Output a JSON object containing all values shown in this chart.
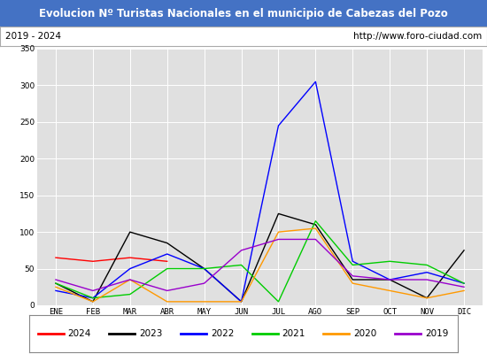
{
  "title": "Evolucion Nº Turistas Nacionales en el municipio de Cabezas del Pozo",
  "subtitle_left": "2019 - 2024",
  "subtitle_right": "http://www.foro-ciudad.com",
  "title_bg_color": "#4472c4",
  "title_text_color": "#ffffff",
  "subtitle_bg_color": "#ffffff",
  "subtitle_text_color": "#000000",
  "plot_bg_color": "#e0e0e0",
  "fig_bg_color": "#ffffff",
  "months": [
    "ENE",
    "FEB",
    "MAR",
    "ABR",
    "MAY",
    "JUN",
    "JUL",
    "AGO",
    "SEP",
    "OCT",
    "NOV",
    "DIC"
  ],
  "ylim": [
    0,
    350
  ],
  "yticks": [
    0,
    50,
    100,
    150,
    200,
    250,
    300,
    350
  ],
  "series": {
    "2024": {
      "color": "#ff0000",
      "data": [
        65,
        60,
        65,
        60,
        null,
        null,
        null,
        null,
        null,
        null,
        null,
        null
      ]
    },
    "2023": {
      "color": "#000000",
      "data": [
        30,
        5,
        100,
        85,
        50,
        5,
        125,
        110,
        35,
        35,
        10,
        75
      ]
    },
    "2022": {
      "color": "#0000ff",
      "data": [
        20,
        10,
        50,
        70,
        50,
        5,
        245,
        305,
        60,
        35,
        45,
        30
      ]
    },
    "2021": {
      "color": "#00cc00",
      "data": [
        30,
        10,
        15,
        50,
        50,
        55,
        5,
        115,
        55,
        60,
        55,
        30
      ]
    },
    "2020": {
      "color": "#ff9900",
      "data": [
        25,
        5,
        35,
        5,
        5,
        5,
        100,
        105,
        30,
        20,
        10,
        20
      ]
    },
    "2019": {
      "color": "#9900cc",
      "data": [
        35,
        20,
        35,
        20,
        30,
        75,
        90,
        90,
        40,
        35,
        35,
        25
      ]
    }
  },
  "legend_order": [
    "2024",
    "2023",
    "2022",
    "2021",
    "2020",
    "2019"
  ]
}
